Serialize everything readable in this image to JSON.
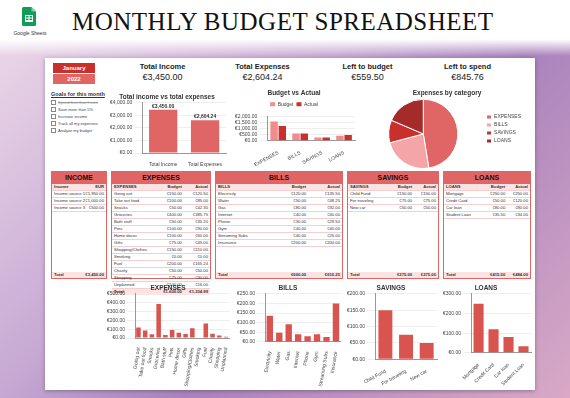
{
  "header": {
    "title": "MONTHLY BUDGET SPREADSHEET",
    "badge": "Google Sheets"
  },
  "summary": {
    "month": "January",
    "year": "2022",
    "items": [
      {
        "label": "Total Income",
        "value": "€3,450.00"
      },
      {
        "label": "Total Expenses",
        "value": "€2,604.24"
      },
      {
        "label": "Left to budget",
        "value": "€559.50"
      },
      {
        "label": "Left to spend",
        "value": "€845.76"
      }
    ]
  },
  "goals": {
    "title": "Goals for this month",
    "items": [
      {
        "text": "Spend less than I earn",
        "done": true
      },
      {
        "text": "Save more than 5%",
        "done": false
      },
      {
        "text": "Increase income",
        "done": false
      },
      {
        "text": "Track all my expenses",
        "done": false
      },
      {
        "text": "Analyze my budget",
        "done": false
      }
    ]
  },
  "tables": [
    {
      "title": "INCOME",
      "columns": [
        "Income",
        "EUR"
      ],
      "rows": [
        [
          "Income source 1",
          "€1,950.00"
        ],
        [
          "Income source 2",
          "€1,000.00"
        ],
        [
          "Income source 3",
          "€500.00"
        ]
      ],
      "total": [
        "Total",
        "€3,450.00"
      ]
    },
    {
      "title": "EXPENSES",
      "columns": [
        "EXPENSES",
        "Budget",
        "Actual"
      ],
      "rows": [
        [
          "Going out",
          "€150.00",
          "€120.50"
        ],
        [
          "Take out food",
          "€100.00",
          "€85.00"
        ],
        [
          "Snacks",
          "€50.00",
          "€42.30"
        ],
        [
          "Groceries",
          "€400.00",
          "€385.75"
        ],
        [
          "Bath stuff",
          "€50.00",
          "€35.20"
        ],
        [
          "Pets",
          "€100.00",
          "€90.00"
        ],
        [
          "Home decor",
          "€100.00",
          "€60.00"
        ],
        [
          "Gifts",
          "€75.00",
          "€45.00"
        ],
        [
          "Shopping/Clothes",
          "€150.00",
          "€110.00"
        ],
        [
          "Smoking",
          "€0.00",
          "€0.00"
        ],
        [
          "Fuel",
          "€200.00",
          "€165.24"
        ],
        [
          "Charity",
          "€50.00",
          "€50.00"
        ],
        [
          "Shopping",
          "€75.00",
          "€30.00"
        ],
        [
          "Unplanned",
          "€100.00",
          "€16.00"
        ]
      ],
      "total": [
        "Total",
        "€1,600.00",
        "€1,234.99"
      ]
    },
    {
      "title": "BILLS",
      "columns": [
        "BILLS",
        "Budget",
        "Actual"
      ],
      "rows": [
        [
          "Electricity",
          "€120.00",
          "€135.50"
        ],
        [
          "Water",
          "€50.00",
          "€48.25"
        ],
        [
          "Gas",
          "€80.00",
          "€92.00"
        ],
        [
          "Internet",
          "€40.00",
          "€40.00"
        ],
        [
          "Phone",
          "€30.00",
          "€29.50"
        ],
        [
          "Gym",
          "€40.00",
          "€40.00"
        ],
        [
          "Streaming Subs",
          "€40.00",
          "€25.00"
        ],
        [
          "Insurance",
          "€200.00",
          "€200.00"
        ]
      ],
      "total": [
        "Total",
        "€600.00",
        "€610.25"
      ]
    },
    {
      "title": "SAVINGS",
      "columns": [
        "SAVINGS",
        "Budget",
        "Actual"
      ],
      "rows": [
        [
          "Child Fund",
          "€150.00",
          "€150.00"
        ],
        [
          "For traveling",
          "€75.00",
          "€75.00"
        ],
        [
          "New car",
          "€50.00",
          "€50.00"
        ]
      ],
      "total": [
        "Total",
        "€275.00",
        "€275.00"
      ]
    },
    {
      "title": "LOANS",
      "columns": [
        "LOANS",
        "Budget",
        "Actual"
      ],
      "rows": [
        [
          "Mortgage",
          "€250.00",
          "€250.00"
        ],
        [
          "Credit Card",
          "€50.00",
          "€120.00"
        ],
        [
          "Car loan",
          "€80.00",
          "€80.00"
        ],
        [
          "Student Loan",
          "€35.50",
          "€34.00"
        ]
      ],
      "total": [
        "Total",
        "€415.50",
        "€484.00"
      ]
    }
  ],
  "chart_data": [
    {
      "type": "bar",
      "title": "Total income vs total expenses",
      "categories": [
        "Total Income",
        "Total Expenses"
      ],
      "values": [
        3450,
        2604.24
      ],
      "value_labels": [
        "€3,450.00",
        "€2,604.24"
      ],
      "data_labels": true,
      "color": "#e06666",
      "ylim": [
        0,
        4000
      ],
      "yticks": [
        {
          "value": 0,
          "label": "€0.00"
        },
        {
          "value": 1000,
          "label": "€1,000.00"
        },
        {
          "value": 2000,
          "label": "€2,000.00"
        },
        {
          "value": 3000,
          "label": "€3,000.00"
        },
        {
          "value": 4000,
          "label": "€4,000.00"
        }
      ],
      "grid": true
    },
    {
      "type": "bar",
      "title": "Budget vs Actual",
      "categories": [
        "EXPENSES",
        "BILLS",
        "SAVINGS",
        "LOANS"
      ],
      "series": [
        {
          "name": "Budget",
          "color": "#f08c8a",
          "values": [
            1600,
            600,
            275,
            415.5
          ]
        },
        {
          "name": "Actual",
          "color": "#c9302c",
          "values": [
            1234.99,
            610.25,
            275,
            484
          ]
        }
      ],
      "legend": "top",
      "ylim": [
        0,
        2000
      ],
      "yticks": [
        {
          "value": 0,
          "label": "€0.00"
        },
        {
          "value": 500,
          "label": "€500.00"
        },
        {
          "value": 1000,
          "label": "€1,000.00"
        },
        {
          "value": 1500,
          "label": "€1,500.00"
        },
        {
          "value": 2000,
          "label": "€2,000.00"
        }
      ],
      "grid": true
    },
    {
      "type": "pie",
      "title": "Expenses by category",
      "categories": [
        "EXPENSES",
        "BILLS",
        "SAVINGS",
        "LOANS"
      ],
      "values": [
        1234.99,
        610.25,
        275,
        484
      ],
      "colors": [
        "#e06666",
        "#f4a6a6",
        "#c9302c",
        "#a52a2a"
      ],
      "legend": "right"
    },
    {
      "type": "bar",
      "title": "EXPENSES",
      "categories": [
        "Going out",
        "Take out food",
        "Snacks",
        "Groceries",
        "Bath stuff",
        "Pets",
        "Home decor",
        "Gifts",
        "Shopping/Clothes",
        "Smoking",
        "Fuel",
        "Charity",
        "Shopping",
        "Unplanned"
      ],
      "values": [
        120.5,
        85,
        42.3,
        385.75,
        35.2,
        90,
        60,
        45,
        110,
        0,
        165.24,
        50,
        30,
        16
      ],
      "color": "#d9534f",
      "ylim": [
        0,
        500
      ],
      "yticks": [
        {
          "value": 0,
          "label": "€0.00"
        },
        {
          "value": 100,
          "label": "€100.00"
        },
        {
          "value": 200,
          "label": "€200.00"
        },
        {
          "value": 300,
          "label": "€300.00"
        },
        {
          "value": 400,
          "label": "€400.00"
        },
        {
          "value": 500,
          "label": "€500.00"
        }
      ],
      "grid": true
    },
    {
      "type": "bar",
      "title": "BILLS",
      "categories": [
        "Electricity",
        "Water",
        "Gas",
        "Internet",
        "Phone",
        "Gym",
        "Streaming Subs",
        "Insurance"
      ],
      "values": [
        135.5,
        48.25,
        92,
        40,
        29.5,
        40,
        25,
        200
      ],
      "color": "#d9534f",
      "ylim": [
        0,
        250
      ],
      "yticks": [
        {
          "value": 0,
          "label": "€0.00"
        },
        {
          "value": 50,
          "label": "€50.00"
        },
        {
          "value": 100,
          "label": "€100.00"
        },
        {
          "value": 150,
          "label": "€150.00"
        },
        {
          "value": 200,
          "label": "€200.00"
        },
        {
          "value": 250,
          "label": "€250.00"
        }
      ],
      "grid": true
    },
    {
      "type": "bar",
      "title": "SAVINGS",
      "categories": [
        "Child Fund",
        "For traveling",
        "New car"
      ],
      "values": [
        150,
        75,
        50
      ],
      "color": "#d9534f",
      "ylim": [
        0,
        200
      ],
      "yticks": [
        {
          "value": 0,
          "label": "€0.00"
        },
        {
          "value": 50,
          "label": "€50.00"
        },
        {
          "value": 100,
          "label": "€100.00"
        },
        {
          "value": 150,
          "label": "€150.00"
        },
        {
          "value": 200,
          "label": "€200.00"
        }
      ],
      "grid": true
    },
    {
      "type": "bar",
      "title": "LOANS",
      "categories": [
        "Mortgage",
        "Credit Card",
        "Car loan",
        "Student Loan"
      ],
      "values": [
        250,
        120,
        80,
        34
      ],
      "color": "#d9534f",
      "ylim": [
        0,
        300
      ],
      "yticks": [
        {
          "value": 0,
          "label": "€0.00"
        },
        {
          "value": 100,
          "label": "€100.00"
        },
        {
          "value": 200,
          "label": "€200.00"
        },
        {
          "value": 300,
          "label": "€300.00"
        }
      ],
      "grid": true
    }
  ]
}
